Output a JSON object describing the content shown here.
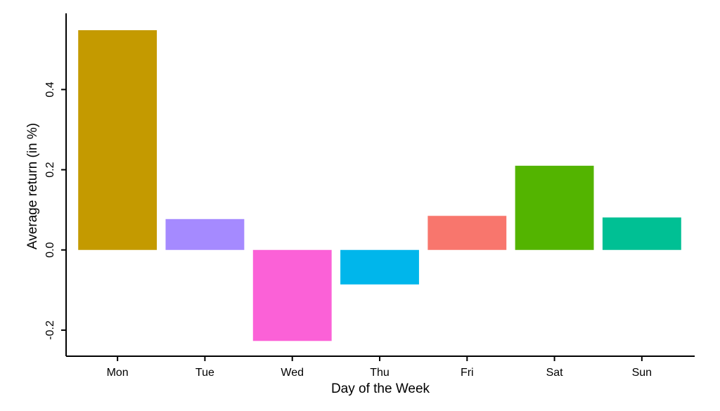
{
  "chart_data": {
    "type": "bar",
    "title": "",
    "xlabel": "Day of the Week",
    "ylabel": "Average return (in %)",
    "categories": [
      "Mon",
      "Tue",
      "Wed",
      "Thu",
      "Fri",
      "Sat",
      "Sun"
    ],
    "values": [
      0.548,
      0.077,
      -0.227,
      -0.086,
      0.085,
      0.21,
      0.081
    ],
    "colors": [
      "#C49A00",
      "#A58AFF",
      "#FB61D7",
      "#00B6EB",
      "#F8766D",
      "#53B400",
      "#00C094"
    ],
    "ylim": [
      -0.265,
      0.59
    ],
    "yticks": [
      -0.2,
      0.0,
      0.2,
      0.4
    ],
    "ytick_labels": [
      "-0.2",
      "0.0",
      "0.2",
      "0.4"
    ],
    "grid": false,
    "legend": "none"
  }
}
